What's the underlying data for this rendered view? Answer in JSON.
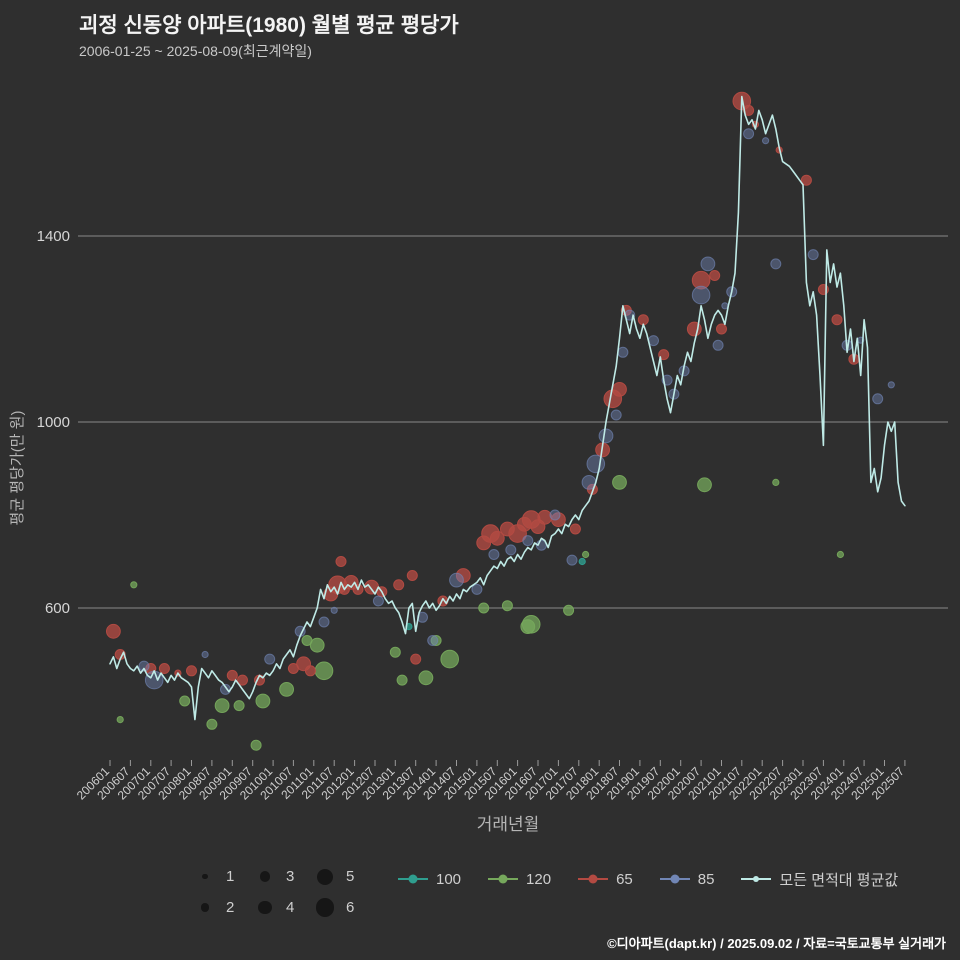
{
  "header": {
    "title": "괴정 신동양 아파트(1980) 월별 평균 평당가",
    "subtitle": "2006-01-25 ~ 2025-08-09(최근계약일)"
  },
  "axes": {
    "y_label": "평균 평당가(만 원)",
    "x_label": "거래년월"
  },
  "footer": {
    "credit": "©디아파트(dapt.kr) / 2025.09.02 / 자료=국토교통부 실거래가"
  },
  "legend": {
    "sizes": [
      [
        1,
        3,
        5
      ],
      [
        2,
        4,
        6
      ]
    ],
    "size_dot_color": "#161616",
    "line_legend_label": "모든 면적대 평균값"
  },
  "chart_data": {
    "type": "scatter",
    "title": "괴정 신동양 아파트(1980) 월별 평균 평당가",
    "background": "#2f2f2f",
    "grid_color": "#8a8a8a",
    "x_unit": "months since 2006-01",
    "ylim": [
      280,
      1730
    ],
    "y_ticks": [
      600,
      1000,
      1400
    ],
    "x_ticks": [
      {
        "m": 0,
        "label": "200601"
      },
      {
        "m": 6,
        "label": "200607"
      },
      {
        "m": 12,
        "label": "200701"
      },
      {
        "m": 18,
        "label": "200707"
      },
      {
        "m": 24,
        "label": "200801"
      },
      {
        "m": 30,
        "label": "200807"
      },
      {
        "m": 36,
        "label": "200901"
      },
      {
        "m": 42,
        "label": "200907"
      },
      {
        "m": 48,
        "label": "201001"
      },
      {
        "m": 54,
        "label": "201007"
      },
      {
        "m": 60,
        "label": "201101"
      },
      {
        "m": 66,
        "label": "201107"
      },
      {
        "m": 72,
        "label": "201201"
      },
      {
        "m": 78,
        "label": "201207"
      },
      {
        "m": 84,
        "label": "201301"
      },
      {
        "m": 90,
        "label": "201307"
      },
      {
        "m": 96,
        "label": "201401"
      },
      {
        "m": 102,
        "label": "201407"
      },
      {
        "m": 108,
        "label": "201501"
      },
      {
        "m": 114,
        "label": "201507"
      },
      {
        "m": 120,
        "label": "201601"
      },
      {
        "m": 126,
        "label": "201607"
      },
      {
        "m": 132,
        "label": "201701"
      },
      {
        "m": 138,
        "label": "201707"
      },
      {
        "m": 144,
        "label": "201801"
      },
      {
        "m": 150,
        "label": "201807"
      },
      {
        "m": 156,
        "label": "201901"
      },
      {
        "m": 162,
        "label": "201907"
      },
      {
        "m": 168,
        "label": "202001"
      },
      {
        "m": 174,
        "label": "202007"
      },
      {
        "m": 180,
        "label": "202101"
      },
      {
        "m": 186,
        "label": "202107"
      },
      {
        "m": 192,
        "label": "202201"
      },
      {
        "m": 198,
        "label": "202207"
      },
      {
        "m": 204,
        "label": "202301"
      },
      {
        "m": 210,
        "label": "202307"
      },
      {
        "m": 216,
        "label": "202401"
      },
      {
        "m": 222,
        "label": "202407"
      },
      {
        "m": 228,
        "label": "202501"
      },
      {
        "m": 234,
        "label": "202507"
      }
    ],
    "line_series": {
      "name": "모든 면적대 평균값",
      "color": "#bfeae6",
      "start": "2006-01",
      "monthly_values": [
        480,
        495,
        470,
        490,
        505,
        480,
        470,
        465,
        475,
        460,
        470,
        455,
        450,
        465,
        445,
        460,
        450,
        440,
        455,
        445,
        460,
        450,
        445,
        440,
        430,
        360,
        430,
        470,
        460,
        450,
        465,
        455,
        445,
        440,
        430,
        420,
        430,
        445,
        435,
        425,
        415,
        405,
        420,
        440,
        455,
        450,
        460,
        455,
        465,
        480,
        470,
        490,
        500,
        510,
        495,
        520,
        540,
        555,
        570,
        560,
        580,
        600,
        640,
        620,
        650,
        635,
        645,
        630,
        655,
        640,
        650,
        645,
        655,
        640,
        660,
        645,
        650,
        640,
        630,
        645,
        635,
        620,
        610,
        615,
        600,
        590,
        570,
        545,
        600,
        610,
        550,
        590,
        605,
        615,
        600,
        610,
        595,
        605,
        620,
        610,
        625,
        615,
        630,
        620,
        640,
        635,
        645,
        650,
        655,
        665,
        650,
        670,
        680,
        690,
        685,
        700,
        690,
        705,
        710,
        700,
        715,
        705,
        720,
        730,
        725,
        740,
        735,
        750,
        745,
        730,
        755,
        760,
        770,
        760,
        780,
        775,
        790,
        800,
        790,
        810,
        820,
        830,
        850,
        870,
        900,
        950,
        1000,
        1040,
        1080,
        1120,
        1180,
        1250,
        1220,
        1190,
        1230,
        1200,
        1180,
        1210,
        1190,
        1160,
        1130,
        1100,
        1140,
        1090,
        1050,
        1020,
        1060,
        1100,
        1080,
        1120,
        1150,
        1130,
        1170,
        1200,
        1250,
        1220,
        1180,
        1210,
        1230,
        1240,
        1230,
        1210,
        1250,
        1280,
        1320,
        1450,
        1700,
        1660,
        1640,
        1650,
        1630,
        1670,
        1650,
        1620,
        1640,
        1660,
        1630,
        1590,
        1560,
        1555,
        1550,
        1540,
        1530,
        1520,
        1510,
        1300,
        1250,
        1280,
        1230,
        1100,
        950,
        1370,
        1300,
        1340,
        1290,
        1320,
        1250,
        1150,
        1200,
        1130,
        1180,
        1100,
        1220,
        1160,
        870,
        900,
        850,
        880,
        950,
        1000,
        980,
        1000,
        870,
        830,
        820
      ]
    },
    "bubble_series": [
      {
        "name": "100",
        "color": "#2f9e8f",
        "alpha": 0.8,
        "points": [
          [
            88,
            560,
            1
          ],
          [
            139,
            700,
            1
          ]
        ]
      },
      {
        "name": "120",
        "color": "#76a85c",
        "alpha": 0.75,
        "points": [
          [
            3,
            360,
            1
          ],
          [
            7,
            650,
            1
          ],
          [
            22,
            400,
            2
          ],
          [
            30,
            350,
            2
          ],
          [
            33,
            390,
            3
          ],
          [
            38,
            390,
            2
          ],
          [
            43,
            305,
            2
          ],
          [
            45,
            400,
            3
          ],
          [
            52,
            425,
            3
          ],
          [
            58,
            530,
            2
          ],
          [
            61,
            520,
            3
          ],
          [
            63,
            465,
            4
          ],
          [
            84,
            505,
            2
          ],
          [
            86,
            445,
            2
          ],
          [
            93,
            450,
            3
          ],
          [
            96,
            530,
            2
          ],
          [
            100,
            490,
            4
          ],
          [
            110,
            600,
            2
          ],
          [
            117,
            605,
            2
          ],
          [
            123,
            560,
            3
          ],
          [
            124,
            565,
            4
          ],
          [
            135,
            595,
            2
          ],
          [
            140,
            715,
            1
          ],
          [
            150,
            870,
            3
          ],
          [
            175,
            865,
            3
          ],
          [
            196,
            870,
            1
          ],
          [
            215,
            715,
            1
          ]
        ]
      },
      {
        "name": "65",
        "color": "#b34a42",
        "alpha": 0.78,
        "points": [
          [
            1,
            550,
            3
          ],
          [
            3,
            500,
            2
          ],
          [
            12,
            470,
            2
          ],
          [
            16,
            470,
            2
          ],
          [
            20,
            460,
            1
          ],
          [
            24,
            465,
            2
          ],
          [
            36,
            455,
            2
          ],
          [
            39,
            445,
            2
          ],
          [
            44,
            445,
            2
          ],
          [
            54,
            470,
            2
          ],
          [
            57,
            480,
            3
          ],
          [
            59,
            465,
            2
          ],
          [
            65,
            630,
            3
          ],
          [
            67,
            650,
            4
          ],
          [
            68,
            700,
            2
          ],
          [
            69,
            640,
            2
          ],
          [
            71,
            655,
            3
          ],
          [
            73,
            640,
            2
          ],
          [
            77,
            645,
            3
          ],
          [
            80,
            635,
            2
          ],
          [
            85,
            650,
            2
          ],
          [
            89,
            670,
            2
          ],
          [
            90,
            490,
            2
          ],
          [
            98,
            615,
            2
          ],
          [
            104,
            670,
            3
          ],
          [
            110,
            740,
            3
          ],
          [
            112,
            760,
            4
          ],
          [
            114,
            750,
            3
          ],
          [
            117,
            770,
            3
          ],
          [
            120,
            760,
            4
          ],
          [
            122,
            780,
            3
          ],
          [
            124,
            790,
            4
          ],
          [
            126,
            775,
            3
          ],
          [
            128,
            795,
            3
          ],
          [
            132,
            790,
            3
          ],
          [
            137,
            770,
            2
          ],
          [
            142,
            855,
            2
          ],
          [
            145,
            940,
            3
          ],
          [
            148,
            1050,
            4
          ],
          [
            150,
            1070,
            3
          ],
          [
            152,
            1240,
            2
          ],
          [
            157,
            1220,
            2
          ],
          [
            163,
            1145,
            2
          ],
          [
            172,
            1200,
            3
          ],
          [
            174,
            1305,
            4
          ],
          [
            178,
            1315,
            2
          ],
          [
            180,
            1200,
            2
          ],
          [
            186,
            1690,
            4
          ],
          [
            188,
            1670,
            2
          ],
          [
            190,
            1640,
            1
          ],
          [
            197,
            1585,
            1
          ],
          [
            205,
            1520,
            2
          ],
          [
            210,
            1285,
            2
          ],
          [
            214,
            1220,
            2
          ],
          [
            219,
            1135,
            2
          ]
        ]
      },
      {
        "name": "85",
        "color": "#7186b5",
        "alpha": 0.45,
        "points": [
          [
            10,
            475,
            2
          ],
          [
            13,
            445,
            4
          ],
          [
            28,
            500,
            1
          ],
          [
            34,
            425,
            2
          ],
          [
            47,
            490,
            2
          ],
          [
            56,
            550,
            2
          ],
          [
            63,
            570,
            2
          ],
          [
            66,
            595,
            1
          ],
          [
            79,
            615,
            2
          ],
          [
            92,
            580,
            2
          ],
          [
            95,
            530,
            2
          ],
          [
            102,
            660,
            3
          ],
          [
            108,
            640,
            2
          ],
          [
            113,
            715,
            2
          ],
          [
            118,
            725,
            2
          ],
          [
            123,
            745,
            2
          ],
          [
            127,
            735,
            2
          ],
          [
            131,
            800,
            2
          ],
          [
            136,
            703,
            2
          ],
          [
            141,
            870,
            3
          ],
          [
            143,
            910,
            4
          ],
          [
            146,
            970,
            3
          ],
          [
            149,
            1015,
            2
          ],
          [
            151,
            1150,
            2
          ],
          [
            153,
            1230,
            2
          ],
          [
            160,
            1175,
            2
          ],
          [
            164,
            1090,
            2
          ],
          [
            166,
            1060,
            2
          ],
          [
            169,
            1110,
            2
          ],
          [
            174,
            1273,
            4
          ],
          [
            176,
            1340,
            3
          ],
          [
            179,
            1165,
            2
          ],
          [
            181,
            1250,
            1
          ],
          [
            183,
            1280,
            2
          ],
          [
            188,
            1620,
            2
          ],
          [
            193,
            1605,
            1
          ],
          [
            196,
            1340,
            2
          ],
          [
            207,
            1360,
            2
          ],
          [
            217,
            1165,
            2
          ],
          [
            221,
            1176,
            1
          ],
          [
            226,
            1050,
            2
          ],
          [
            230,
            1080,
            1
          ]
        ]
      }
    ]
  }
}
